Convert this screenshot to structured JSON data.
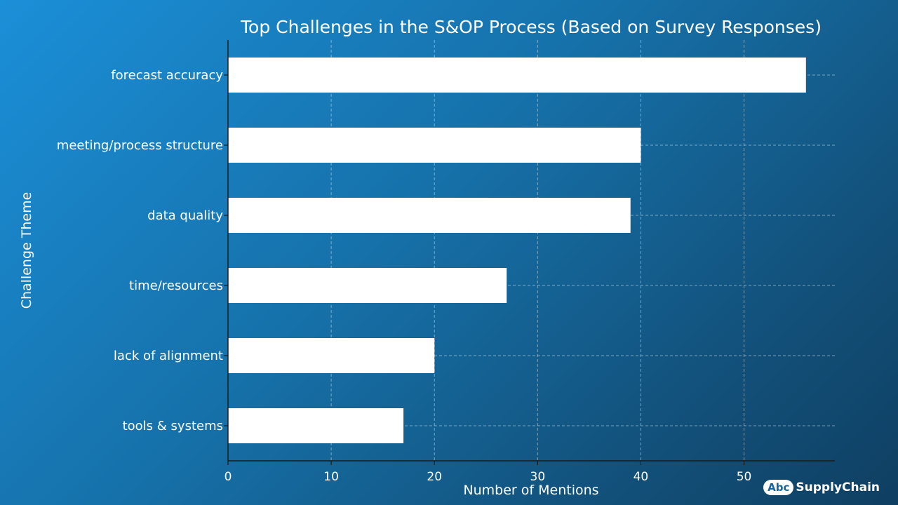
{
  "chart_data": {
    "type": "bar",
    "orientation": "horizontal",
    "title": "Top Challenges in the S&OP Process (Based on Survey Responses)",
    "xlabel": "Number of Mentions",
    "ylabel": "Challenge Theme",
    "categories": [
      "forecast accuracy",
      "meeting/process structure",
      "data quality",
      "time/resources",
      "lack of alignment",
      "tools & systems"
    ],
    "values": [
      56,
      40,
      39,
      27,
      20,
      17
    ],
    "xlim": [
      0,
      58.8
    ],
    "xticks": [
      0,
      10,
      20,
      30,
      40,
      50
    ],
    "grid": true,
    "bar_color": "#ffffff"
  },
  "branding": {
    "badge": "Abc",
    "name": "SupplyChain"
  }
}
